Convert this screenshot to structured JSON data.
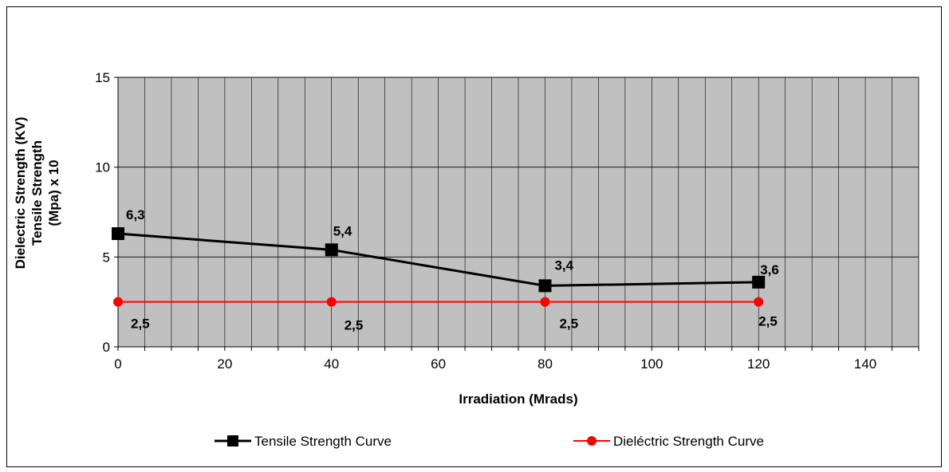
{
  "chart_data": {
    "type": "line",
    "title": "",
    "xlabel": "Irradiation (Mrads)",
    "ylabel_lines": [
      "Dielectric Strength (KV)",
      "Tensile Strength",
      "(Mpa) x 10"
    ],
    "xlim": [
      0,
      150
    ],
    "ylim": [
      0,
      15
    ],
    "x_ticks": [
      "0",
      "20",
      "40",
      "60",
      "80",
      "100",
      "120",
      "140"
    ],
    "y_ticks": [
      "0",
      "5",
      "10",
      "15"
    ],
    "grid": true,
    "plot_background": "#c0c0c0",
    "legend_position": "bottom",
    "series": [
      {
        "name": "Tensile Strength Curve",
        "color": "#000000",
        "marker": "square",
        "x": [
          0,
          40,
          80,
          120
        ],
        "y": [
          6.3,
          5.4,
          3.4,
          3.6
        ],
        "labels": [
          "6,3",
          "5,4",
          "3,4",
          "3,6"
        ]
      },
      {
        "name": "Dieléctric Strength Curve",
        "color": "#ff0000",
        "marker": "circle",
        "x": [
          0,
          40,
          80,
          120
        ],
        "y": [
          2.5,
          2.5,
          2.5,
          2.5
        ],
        "labels": [
          "2,5",
          "2,5",
          "2,5",
          "2,5"
        ]
      }
    ]
  }
}
